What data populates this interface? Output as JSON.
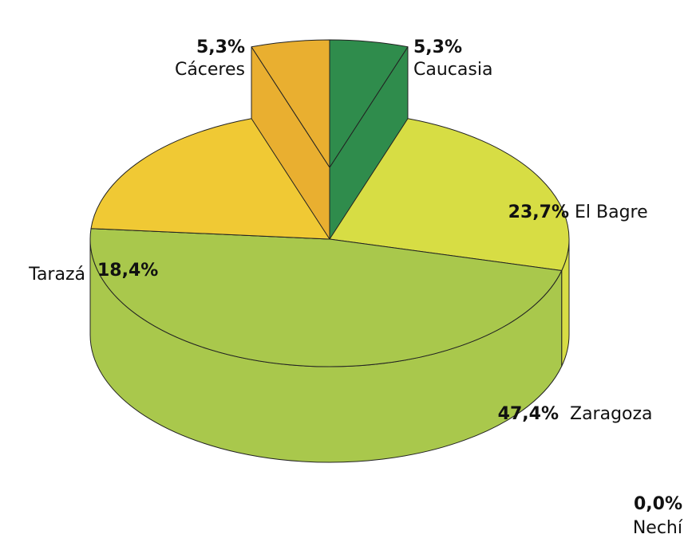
{
  "chart_data": {
    "type": "pie",
    "categories": [
      "Caucasia",
      "El Bagre",
      "Zaragoza",
      "Nechí",
      "Tarazá",
      "Cáceres"
    ],
    "values": [
      5.3,
      23.7,
      47.4,
      0.0,
      18.4,
      5.3
    ],
    "value_labels": [
      "5,3%",
      "23,7%",
      "47,4%",
      "0,0%",
      "18,4%",
      "5,3%"
    ],
    "colors": [
      "#2f8c4c",
      "#d7dd44",
      "#a9c84c",
      "#a9c84c",
      "#f0c934",
      "#e9af30"
    ],
    "exploded": [
      true,
      false,
      false,
      false,
      false,
      true
    ]
  }
}
